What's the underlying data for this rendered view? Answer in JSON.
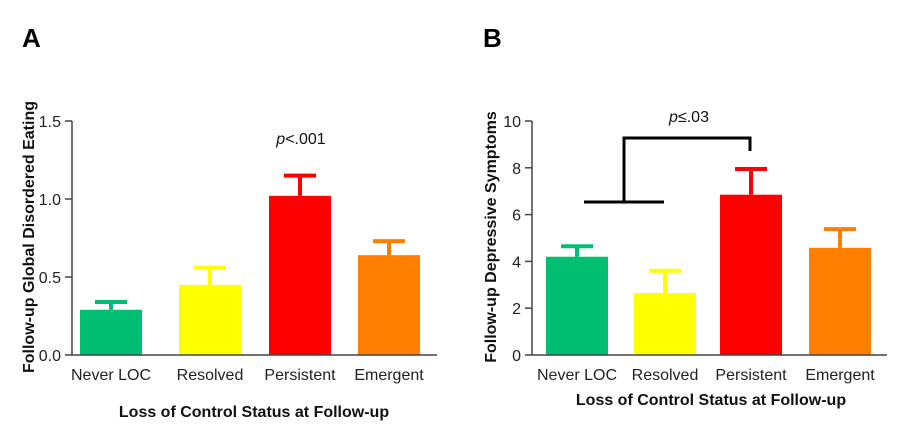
{
  "chart_data": [
    {
      "type": "bar",
      "panel": "A",
      "categories": [
        "Never LOC",
        "Resolved",
        "Persistent",
        "Emergent"
      ],
      "values": [
        0.29,
        0.45,
        1.02,
        0.64
      ],
      "errors": [
        0.05,
        0.11,
        0.13,
        0.09
      ],
      "colors": [
        "#00bf73",
        "#ffff00",
        "#ff0000",
        "#ff7f00"
      ],
      "ylim": [
        0,
        1.5
      ],
      "yticks": [
        "0.0",
        "0.5",
        "1.0",
        "1.5"
      ],
      "xlabel": "Loss of Control Status at Follow-up",
      "ylabel": "Follow-up Global Disordered Eating",
      "annotation": {
        "p": "p",
        "rest": "<.001"
      }
    },
    {
      "type": "bar",
      "panel": "B",
      "categories": [
        "Never LOC",
        "Resolved",
        "Persistent",
        "Emergent"
      ],
      "values": [
        4.2,
        2.65,
        6.85,
        4.58
      ],
      "errors": [
        0.45,
        0.95,
        1.1,
        0.8
      ],
      "colors": [
        "#00bf73",
        "#ffff00",
        "#ff0000",
        "#ff7f00"
      ],
      "ylim": [
        0,
        10
      ],
      "yticks": [
        "0",
        "2",
        "4",
        "6",
        "8",
        "10"
      ],
      "xlabel": "Loss of Control Status at Follow-up",
      "ylabel": "Follow-up Depressive Symptoms",
      "annotation": {
        "p": "p",
        "rest": "≤.03"
      }
    }
  ]
}
